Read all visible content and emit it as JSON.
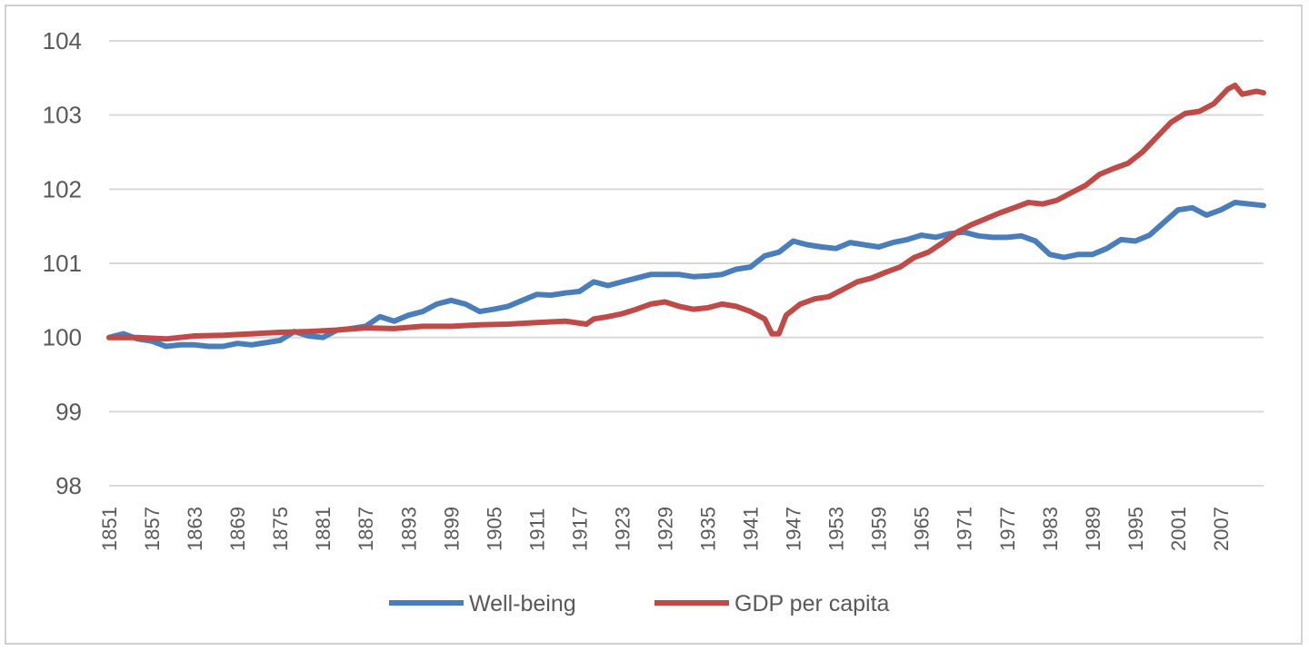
{
  "chart_data": {
    "type": "line",
    "title": "",
    "xlabel": "",
    "ylabel": "",
    "ylim": [
      98,
      104
    ],
    "yticks": [
      98,
      99,
      100,
      101,
      102,
      103,
      104
    ],
    "xlim": [
      1851,
      2013
    ],
    "xtick_labels": [
      "1851",
      "1857",
      "1863",
      "1869",
      "1875",
      "1881",
      "1887",
      "1893",
      "1899",
      "1905",
      "1911",
      "1917",
      "1923",
      "1929",
      "1935",
      "1941",
      "1947",
      "1953",
      "1959",
      "1965",
      "1971",
      "1977",
      "1983",
      "1989",
      "1995",
      "2001",
      "2007"
    ],
    "grid": "horizontal",
    "legend_position": "bottom",
    "series": [
      {
        "name": "Well-being",
        "color": "#4a7ebb",
        "points": [
          [
            1851,
            100.0
          ],
          [
            1853,
            100.05
          ],
          [
            1855,
            99.98
          ],
          [
            1857,
            99.95
          ],
          [
            1859,
            99.88
          ],
          [
            1861,
            99.9
          ],
          [
            1863,
            99.9
          ],
          [
            1865,
            99.88
          ],
          [
            1867,
            99.88
          ],
          [
            1869,
            99.92
          ],
          [
            1871,
            99.9
          ],
          [
            1873,
            99.93
          ],
          [
            1875,
            99.96
          ],
          [
            1877,
            100.08
          ],
          [
            1879,
            100.02
          ],
          [
            1881,
            100.0
          ],
          [
            1883,
            100.1
          ],
          [
            1885,
            100.12
          ],
          [
            1887,
            100.15
          ],
          [
            1889,
            100.28
          ],
          [
            1891,
            100.22
          ],
          [
            1893,
            100.3
          ],
          [
            1895,
            100.35
          ],
          [
            1897,
            100.45
          ],
          [
            1899,
            100.5
          ],
          [
            1901,
            100.45
          ],
          [
            1903,
            100.35
          ],
          [
            1905,
            100.38
          ],
          [
            1907,
            100.42
          ],
          [
            1909,
            100.5
          ],
          [
            1911,
            100.58
          ],
          [
            1913,
            100.57
          ],
          [
            1915,
            100.6
          ],
          [
            1917,
            100.62
          ],
          [
            1919,
            100.75
          ],
          [
            1921,
            100.7
          ],
          [
            1923,
            100.75
          ],
          [
            1925,
            100.8
          ],
          [
            1927,
            100.85
          ],
          [
            1929,
            100.85
          ],
          [
            1931,
            100.85
          ],
          [
            1933,
            100.82
          ],
          [
            1935,
            100.83
          ],
          [
            1937,
            100.85
          ],
          [
            1939,
            100.92
          ],
          [
            1941,
            100.95
          ],
          [
            1943,
            101.1
          ],
          [
            1945,
            101.15
          ],
          [
            1947,
            101.3
          ],
          [
            1949,
            101.25
          ],
          [
            1951,
            101.22
          ],
          [
            1953,
            101.2
          ],
          [
            1955,
            101.28
          ],
          [
            1957,
            101.25
          ],
          [
            1959,
            101.22
          ],
          [
            1961,
            101.28
          ],
          [
            1963,
            101.32
          ],
          [
            1965,
            101.38
          ],
          [
            1967,
            101.35
          ],
          [
            1969,
            101.4
          ],
          [
            1971,
            101.42
          ],
          [
            1973,
            101.37
          ],
          [
            1975,
            101.35
          ],
          [
            1977,
            101.35
          ],
          [
            1979,
            101.37
          ],
          [
            1981,
            101.3
          ],
          [
            1983,
            101.12
          ],
          [
            1985,
            101.08
          ],
          [
            1987,
            101.12
          ],
          [
            1989,
            101.12
          ],
          [
            1991,
            101.2
          ],
          [
            1993,
            101.32
          ],
          [
            1995,
            101.3
          ],
          [
            1997,
            101.38
          ],
          [
            1999,
            101.55
          ],
          [
            2001,
            101.72
          ],
          [
            2003,
            101.75
          ],
          [
            2005,
            101.65
          ],
          [
            2007,
            101.72
          ],
          [
            2009,
            101.82
          ],
          [
            2011,
            101.8
          ],
          [
            2013,
            101.78
          ]
        ]
      },
      {
        "name": "GDP per capita",
        "color": "#be4b48",
        "points": [
          [
            1851,
            100.0
          ],
          [
            1855,
            100.0
          ],
          [
            1859,
            99.98
          ],
          [
            1863,
            100.02
          ],
          [
            1867,
            100.03
          ],
          [
            1871,
            100.05
          ],
          [
            1875,
            100.07
          ],
          [
            1879,
            100.08
          ],
          [
            1883,
            100.1
          ],
          [
            1887,
            100.13
          ],
          [
            1891,
            100.12
          ],
          [
            1895,
            100.15
          ],
          [
            1899,
            100.15
          ],
          [
            1903,
            100.17
          ],
          [
            1907,
            100.18
          ],
          [
            1911,
            100.2
          ],
          [
            1915,
            100.22
          ],
          [
            1918,
            100.18
          ],
          [
            1919,
            100.25
          ],
          [
            1921,
            100.28
          ],
          [
            1923,
            100.32
          ],
          [
            1925,
            100.38
          ],
          [
            1927,
            100.45
          ],
          [
            1929,
            100.48
          ],
          [
            1931,
            100.42
          ],
          [
            1933,
            100.38
          ],
          [
            1935,
            100.4
          ],
          [
            1937,
            100.45
          ],
          [
            1939,
            100.42
          ],
          [
            1941,
            100.35
          ],
          [
            1943,
            100.25
          ],
          [
            1944,
            100.05
          ],
          [
            1945,
            100.05
          ],
          [
            1946,
            100.3
          ],
          [
            1948,
            100.45
          ],
          [
            1950,
            100.52
          ],
          [
            1952,
            100.55
          ],
          [
            1954,
            100.65
          ],
          [
            1956,
            100.75
          ],
          [
            1958,
            100.8
          ],
          [
            1960,
            100.88
          ],
          [
            1962,
            100.95
          ],
          [
            1964,
            101.08
          ],
          [
            1966,
            101.15
          ],
          [
            1968,
            101.28
          ],
          [
            1970,
            101.42
          ],
          [
            1972,
            101.52
          ],
          [
            1974,
            101.6
          ],
          [
            1976,
            101.68
          ],
          [
            1978,
            101.75
          ],
          [
            1980,
            101.82
          ],
          [
            1982,
            101.8
          ],
          [
            1984,
            101.85
          ],
          [
            1986,
            101.95
          ],
          [
            1988,
            102.05
          ],
          [
            1990,
            102.2
          ],
          [
            1992,
            102.28
          ],
          [
            1994,
            102.35
          ],
          [
            1996,
            102.5
          ],
          [
            1998,
            102.7
          ],
          [
            2000,
            102.9
          ],
          [
            2002,
            103.02
          ],
          [
            2004,
            103.05
          ],
          [
            2006,
            103.15
          ],
          [
            2008,
            103.35
          ],
          [
            2009,
            103.4
          ],
          [
            2010,
            103.28
          ],
          [
            2012,
            103.32
          ],
          [
            2013,
            103.3
          ]
        ]
      }
    ]
  }
}
